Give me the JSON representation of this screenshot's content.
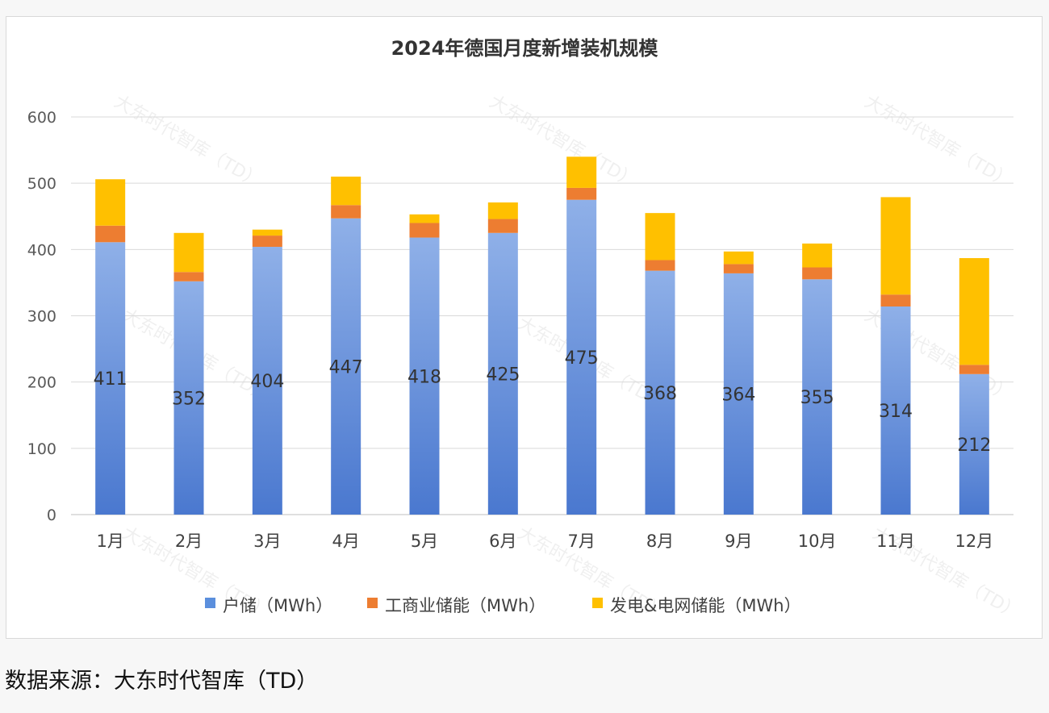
{
  "title": "2024年德国月度新增装机规模",
  "source": "数据来源：大东时代智库（TD）",
  "watermark": "大东时代智库（TD）",
  "chart_data": {
    "type": "bar",
    "stacked": true,
    "title": "2024年德国月度新增装机规模",
    "categories": [
      "1月",
      "2月",
      "3月",
      "4月",
      "5月",
      "6月",
      "7月",
      "8月",
      "9月",
      "10月",
      "11月",
      "12月"
    ],
    "series": [
      {
        "name": "户储（MWh）",
        "color": "#5b8fdd",
        "values": [
          411,
          352,
          404,
          447,
          418,
          425,
          475,
          368,
          364,
          355,
          314,
          212
        ]
      },
      {
        "name": "工商业储能（MWh）",
        "color": "#ed7d31",
        "values": [
          25,
          14,
          17,
          20,
          22,
          21,
          18,
          16,
          14,
          18,
          18,
          14
        ]
      },
      {
        "name": "发电&电网储能（MWh）",
        "color": "#ffc000",
        "values": [
          70,
          59,
          9,
          43,
          13,
          25,
          47,
          71,
          19,
          36,
          147,
          161
        ]
      }
    ],
    "data_labels_series": "户储（MWh）",
    "ylim": [
      0,
      600
    ],
    "yticks": [
      0,
      100,
      200,
      300,
      400,
      500,
      600
    ],
    "grid": true,
    "legend": "bottom"
  }
}
